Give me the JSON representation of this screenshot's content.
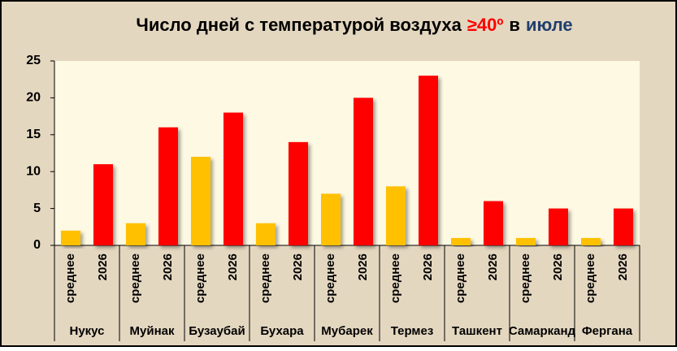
{
  "chart_data": {
    "type": "bar",
    "title_parts": [
      {
        "text": "Число дней с температурой воздуха",
        "color": "#000000"
      },
      {
        "text": "≥40º",
        "color": "#ff0000"
      },
      {
        "text": "в",
        "color": "#000000"
      },
      {
        "text": "июле",
        "color": "#1f3f6e"
      }
    ],
    "categories": [
      "Нукус",
      "Муйнак",
      "Бузаубай",
      "Бухара",
      "Мубарек",
      "Термез",
      "Ташкент",
      "Самарканд",
      "Фергана"
    ],
    "series": [
      {
        "name": "среднее",
        "color": "#ffc000",
        "values": [
          2,
          3,
          12,
          3,
          7,
          8,
          1,
          1,
          1
        ]
      },
      {
        "name": "2026",
        "color": "#ff0000",
        "values": [
          11,
          16,
          18,
          14,
          20,
          23,
          6,
          5,
          5
        ]
      }
    ],
    "ylim": [
      0,
      25
    ],
    "yticks": [
      0,
      5,
      10,
      15,
      20,
      25
    ],
    "grid": false
  }
}
